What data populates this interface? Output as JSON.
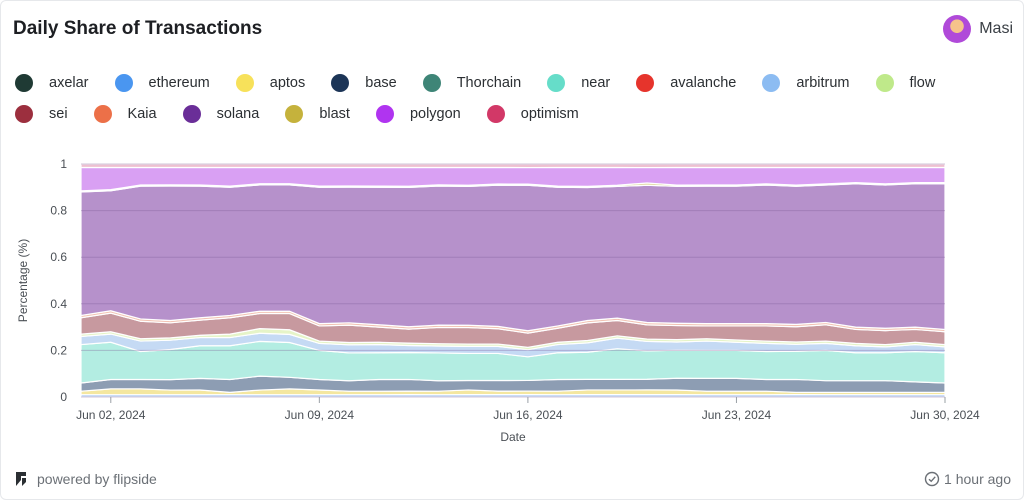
{
  "header": {
    "title": "Daily Share of Transactions",
    "user": "Masi"
  },
  "legend": {
    "row1": [
      {
        "label": "axelar",
        "color": "#1f3a34"
      },
      {
        "label": "ethereum",
        "color": "#4a96f0"
      },
      {
        "label": "aptos",
        "color": "#f7e15a"
      },
      {
        "label": "base",
        "color": "#1c3557"
      },
      {
        "label": "Thorchain",
        "color": "#3e8577"
      },
      {
        "label": "near",
        "color": "#66ddc9"
      },
      {
        "label": "avalanche",
        "color": "#e6342c"
      },
      {
        "label": "arbitrum",
        "color": "#8cbcf2"
      },
      {
        "label": "flow",
        "color": "#bfe98a"
      }
    ],
    "row2": [
      {
        "label": "sei",
        "color": "#9c2f3e"
      },
      {
        "label": "Kaia",
        "color": "#ec7048"
      },
      {
        "label": "solana",
        "color": "#6a2e98"
      },
      {
        "label": "blast",
        "color": "#c5b23c"
      },
      {
        "label": "polygon",
        "color": "#b034f0"
      },
      {
        "label": "optimism",
        "color": "#d23867"
      }
    ]
  },
  "chart_data": {
    "type": "area",
    "stacked": true,
    "normalized": true,
    "xlabel": "Date",
    "ylabel": "Percentage (%)",
    "ylim": [
      0,
      1
    ],
    "yticks": [
      "0",
      "0.2",
      "0.4",
      "0.6",
      "0.8",
      "1"
    ],
    "xticks": [
      "Jun 02, 2024",
      "Jun 09, 2024",
      "Jun 16, 2024",
      "Jun 23, 2024",
      "Jun 30, 2024"
    ],
    "x_start": "Jun 01, 2024",
    "days": 30,
    "series": [
      {
        "name": "ethereum",
        "color": "#a9cbf3",
        "values": [
          0.01,
          0.01,
          0.01,
          0.01,
          0.01,
          0.01,
          0.01,
          0.01,
          0.01,
          0.01,
          0.01,
          0.01,
          0.01,
          0.01,
          0.01,
          0.01,
          0.01,
          0.01,
          0.01,
          0.01,
          0.01,
          0.01,
          0.01,
          0.01,
          0.01,
          0.01,
          0.01,
          0.01,
          0.01,
          0.01
        ]
      },
      {
        "name": "aptos",
        "color": "#f4e7a0",
        "values": [
          0.015,
          0.025,
          0.025,
          0.02,
          0.02,
          0.01,
          0.02,
          0.025,
          0.02,
          0.015,
          0.015,
          0.015,
          0.015,
          0.02,
          0.015,
          0.015,
          0.015,
          0.02,
          0.02,
          0.02,
          0.02,
          0.015,
          0.015,
          0.015,
          0.01,
          0.01,
          0.01,
          0.01,
          0.01,
          0.01
        ]
      },
      {
        "name": "base",
        "color": "#8d9db3",
        "values": [
          0.035,
          0.04,
          0.04,
          0.045,
          0.05,
          0.055,
          0.06,
          0.05,
          0.045,
          0.045,
          0.05,
          0.05,
          0.045,
          0.04,
          0.045,
          0.045,
          0.05,
          0.045,
          0.045,
          0.045,
          0.05,
          0.055,
          0.055,
          0.05,
          0.055,
          0.05,
          0.05,
          0.05,
          0.045,
          0.04
        ]
      },
      {
        "name": "near",
        "color": "#b3ede2",
        "values": [
          0.165,
          0.16,
          0.12,
          0.13,
          0.14,
          0.145,
          0.15,
          0.15,
          0.125,
          0.12,
          0.115,
          0.115,
          0.12,
          0.115,
          0.115,
          0.1,
          0.115,
          0.115,
          0.13,
          0.12,
          0.12,
          0.12,
          0.12,
          0.12,
          0.12,
          0.13,
          0.12,
          0.12,
          0.13,
          0.13
        ]
      },
      {
        "name": "arbitrum",
        "color": "#c5daf4",
        "values": [
          0.035,
          0.035,
          0.045,
          0.04,
          0.035,
          0.035,
          0.035,
          0.035,
          0.03,
          0.035,
          0.035,
          0.03,
          0.03,
          0.03,
          0.03,
          0.03,
          0.035,
          0.04,
          0.045,
          0.04,
          0.035,
          0.04,
          0.035,
          0.035,
          0.03,
          0.03,
          0.03,
          0.025,
          0.03,
          0.025
        ]
      },
      {
        "name": "flow",
        "color": "#e6f4c8",
        "values": [
          0.01,
          0.01,
          0.01,
          0.01,
          0.01,
          0.015,
          0.02,
          0.02,
          0.01,
          0.01,
          0.01,
          0.01,
          0.01,
          0.01,
          0.01,
          0.01,
          0.01,
          0.01,
          0.01,
          0.01,
          0.01,
          0.01,
          0.01,
          0.01,
          0.01,
          0.01,
          0.01,
          0.01,
          0.01,
          0.01
        ]
      },
      {
        "name": "sei",
        "color": "#c7999f",
        "values": [
          0.07,
          0.08,
          0.075,
          0.065,
          0.065,
          0.07,
          0.065,
          0.07,
          0.065,
          0.075,
          0.065,
          0.06,
          0.07,
          0.07,
          0.065,
          0.06,
          0.06,
          0.075,
          0.065,
          0.06,
          0.06,
          0.055,
          0.06,
          0.065,
          0.065,
          0.07,
          0.06,
          0.06,
          0.055,
          0.055
        ]
      },
      {
        "name": "Kaia",
        "color": "#f2c4b4",
        "values": [
          0.01,
          0.01,
          0.01,
          0.01,
          0.01,
          0.01,
          0.01,
          0.01,
          0.01,
          0.01,
          0.01,
          0.01,
          0.01,
          0.01,
          0.01,
          0.01,
          0.01,
          0.01,
          0.01,
          0.01,
          0.01,
          0.01,
          0.01,
          0.01,
          0.01,
          0.01,
          0.01,
          0.01,
          0.01,
          0.01
        ]
      },
      {
        "name": "solana",
        "color": "#b691cb",
        "values": [
          0.53,
          0.515,
          0.57,
          0.58,
          0.565,
          0.55,
          0.545,
          0.545,
          0.585,
          0.585,
          0.59,
          0.595,
          0.6,
          0.59,
          0.6,
          0.615,
          0.595,
          0.565,
          0.56,
          0.58,
          0.585,
          0.59,
          0.59,
          0.595,
          0.59,
          0.59,
          0.615,
          0.615,
          0.615,
          0.625
        ]
      },
      {
        "name": "blast",
        "color": "#e3dca8",
        "values": [
          0.005,
          0.005,
          0.005,
          0.005,
          0.005,
          0.005,
          0.005,
          0.005,
          0.005,
          0.005,
          0.005,
          0.005,
          0.005,
          0.005,
          0.005,
          0.005,
          0.005,
          0.005,
          0.005,
          0.01,
          0.005,
          0.005,
          0.005,
          0.005,
          0.005,
          0.005,
          0.005,
          0.005,
          0.005,
          0.005
        ]
      },
      {
        "name": "polygon",
        "color": "#d9a0f3",
        "values": [
          0.1,
          0.095,
          0.075,
          0.075,
          0.075,
          0.08,
          0.07,
          0.07,
          0.08,
          0.08,
          0.08,
          0.08,
          0.075,
          0.075,
          0.07,
          0.07,
          0.08,
          0.08,
          0.075,
          0.065,
          0.075,
          0.075,
          0.075,
          0.07,
          0.075,
          0.07,
          0.065,
          0.07,
          0.065,
          0.065
        ]
      },
      {
        "name": "optimism",
        "color": "#eec0d1",
        "values": [
          0.015,
          0.015,
          0.015,
          0.015,
          0.015,
          0.015,
          0.015,
          0.015,
          0.015,
          0.015,
          0.015,
          0.015,
          0.015,
          0.015,
          0.015,
          0.015,
          0.015,
          0.015,
          0.015,
          0.015,
          0.015,
          0.015,
          0.015,
          0.015,
          0.015,
          0.015,
          0.015,
          0.015,
          0.015,
          0.015
        ]
      }
    ]
  },
  "footer": {
    "powered_by": "powered by flipside",
    "updated": "1 hour ago"
  }
}
